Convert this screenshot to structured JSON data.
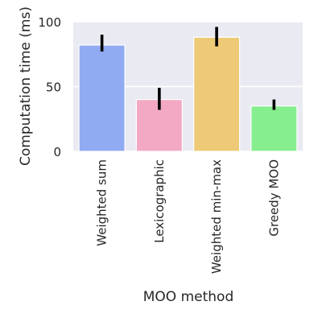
{
  "chart_data": {
    "type": "bar",
    "title": "",
    "xlabel": "MOO method",
    "ylabel": "Computation time (ms)",
    "categories": [
      "Weighted sum",
      "Lexicographic",
      "Weighted min-max",
      "Greedy MOO"
    ],
    "values": [
      82,
      40,
      88,
      35
    ],
    "error": [
      [
        77,
        90
      ],
      [
        32,
        49
      ],
      [
        81,
        96
      ],
      [
        32,
        40
      ]
    ],
    "colors": [
      "#91abf2",
      "#f3a9c3",
      "#eeca77",
      "#86ee8f"
    ],
    "ylim": [
      0,
      100
    ],
    "yticks": [
      0,
      50,
      100
    ],
    "grid": true,
    "legend": "none",
    "style": {
      "background": "#eaeaf2",
      "grid_color": "#ffffff",
      "error_color": "#000000"
    }
  }
}
